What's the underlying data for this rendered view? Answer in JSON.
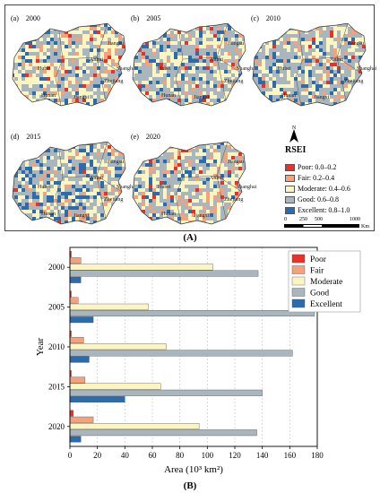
{
  "panel_a": {
    "label": "(A)",
    "maps": [
      {
        "letter": "(a)",
        "year": "2000"
      },
      {
        "letter": "(b)",
        "year": "2005"
      },
      {
        "letter": "(c)",
        "year": "2010"
      },
      {
        "letter": "(d)",
        "year": "2015"
      },
      {
        "letter": "(e)",
        "year": "2020"
      }
    ],
    "provinces": [
      "Hubei",
      "Anhui",
      "Jiangsu",
      "Hunan",
      "Jiangxi",
      "Zhejiang",
      "Shanghai"
    ],
    "north": "N",
    "legend": {
      "title": "RSEI",
      "items": [
        {
          "label": "Poor: 0.0–0.2",
          "color": "#e8312a"
        },
        {
          "label": "Fair: 0.2–0.4",
          "color": "#f4a27c"
        },
        {
          "label": "Moderate: 0.4–0.6",
          "color": "#fbf5c2"
        },
        {
          "label": "Good: 0.6–0.8",
          "color": "#a9b6bd"
        },
        {
          "label": "Excellent: 0.8–1.0",
          "color": "#2a6cad"
        }
      ]
    },
    "scale": {
      "ticks": [
        "0",
        "250",
        "500",
        "1000"
      ],
      "unit": "Km"
    }
  },
  "panel_b": {
    "label": "(B)"
  },
  "chart_data": {
    "type": "bar",
    "orientation": "horizontal",
    "categories": [
      "2000",
      "2005",
      "2010",
      "2015",
      "2020"
    ],
    "series": [
      {
        "name": "Poor",
        "color": "#e8312a",
        "values": [
          1,
          1,
          1,
          1,
          2.5
        ]
      },
      {
        "name": "Fair",
        "color": "#f4a27c",
        "values": [
          8,
          6,
          10,
          11,
          17
        ]
      },
      {
        "name": "Moderate",
        "color": "#fbf5c2",
        "values": [
          104,
          57,
          70,
          66,
          94
        ]
      },
      {
        "name": "Good",
        "color": "#a9b6bd",
        "values": [
          137,
          178,
          162,
          140,
          136
        ]
      },
      {
        "name": "Excellent",
        "color": "#2a6cad",
        "values": [
          8,
          17,
          14,
          40,
          8
        ]
      }
    ],
    "xlabel": "Area (10³ km²)",
    "ylabel": "Year",
    "xlim": [
      0,
      180
    ],
    "xticks": [
      "0",
      "20",
      "40",
      "60",
      "80",
      "100",
      "120",
      "140",
      "160",
      "180"
    ],
    "grid": "vertical dashed",
    "legend_position": "top-right"
  }
}
